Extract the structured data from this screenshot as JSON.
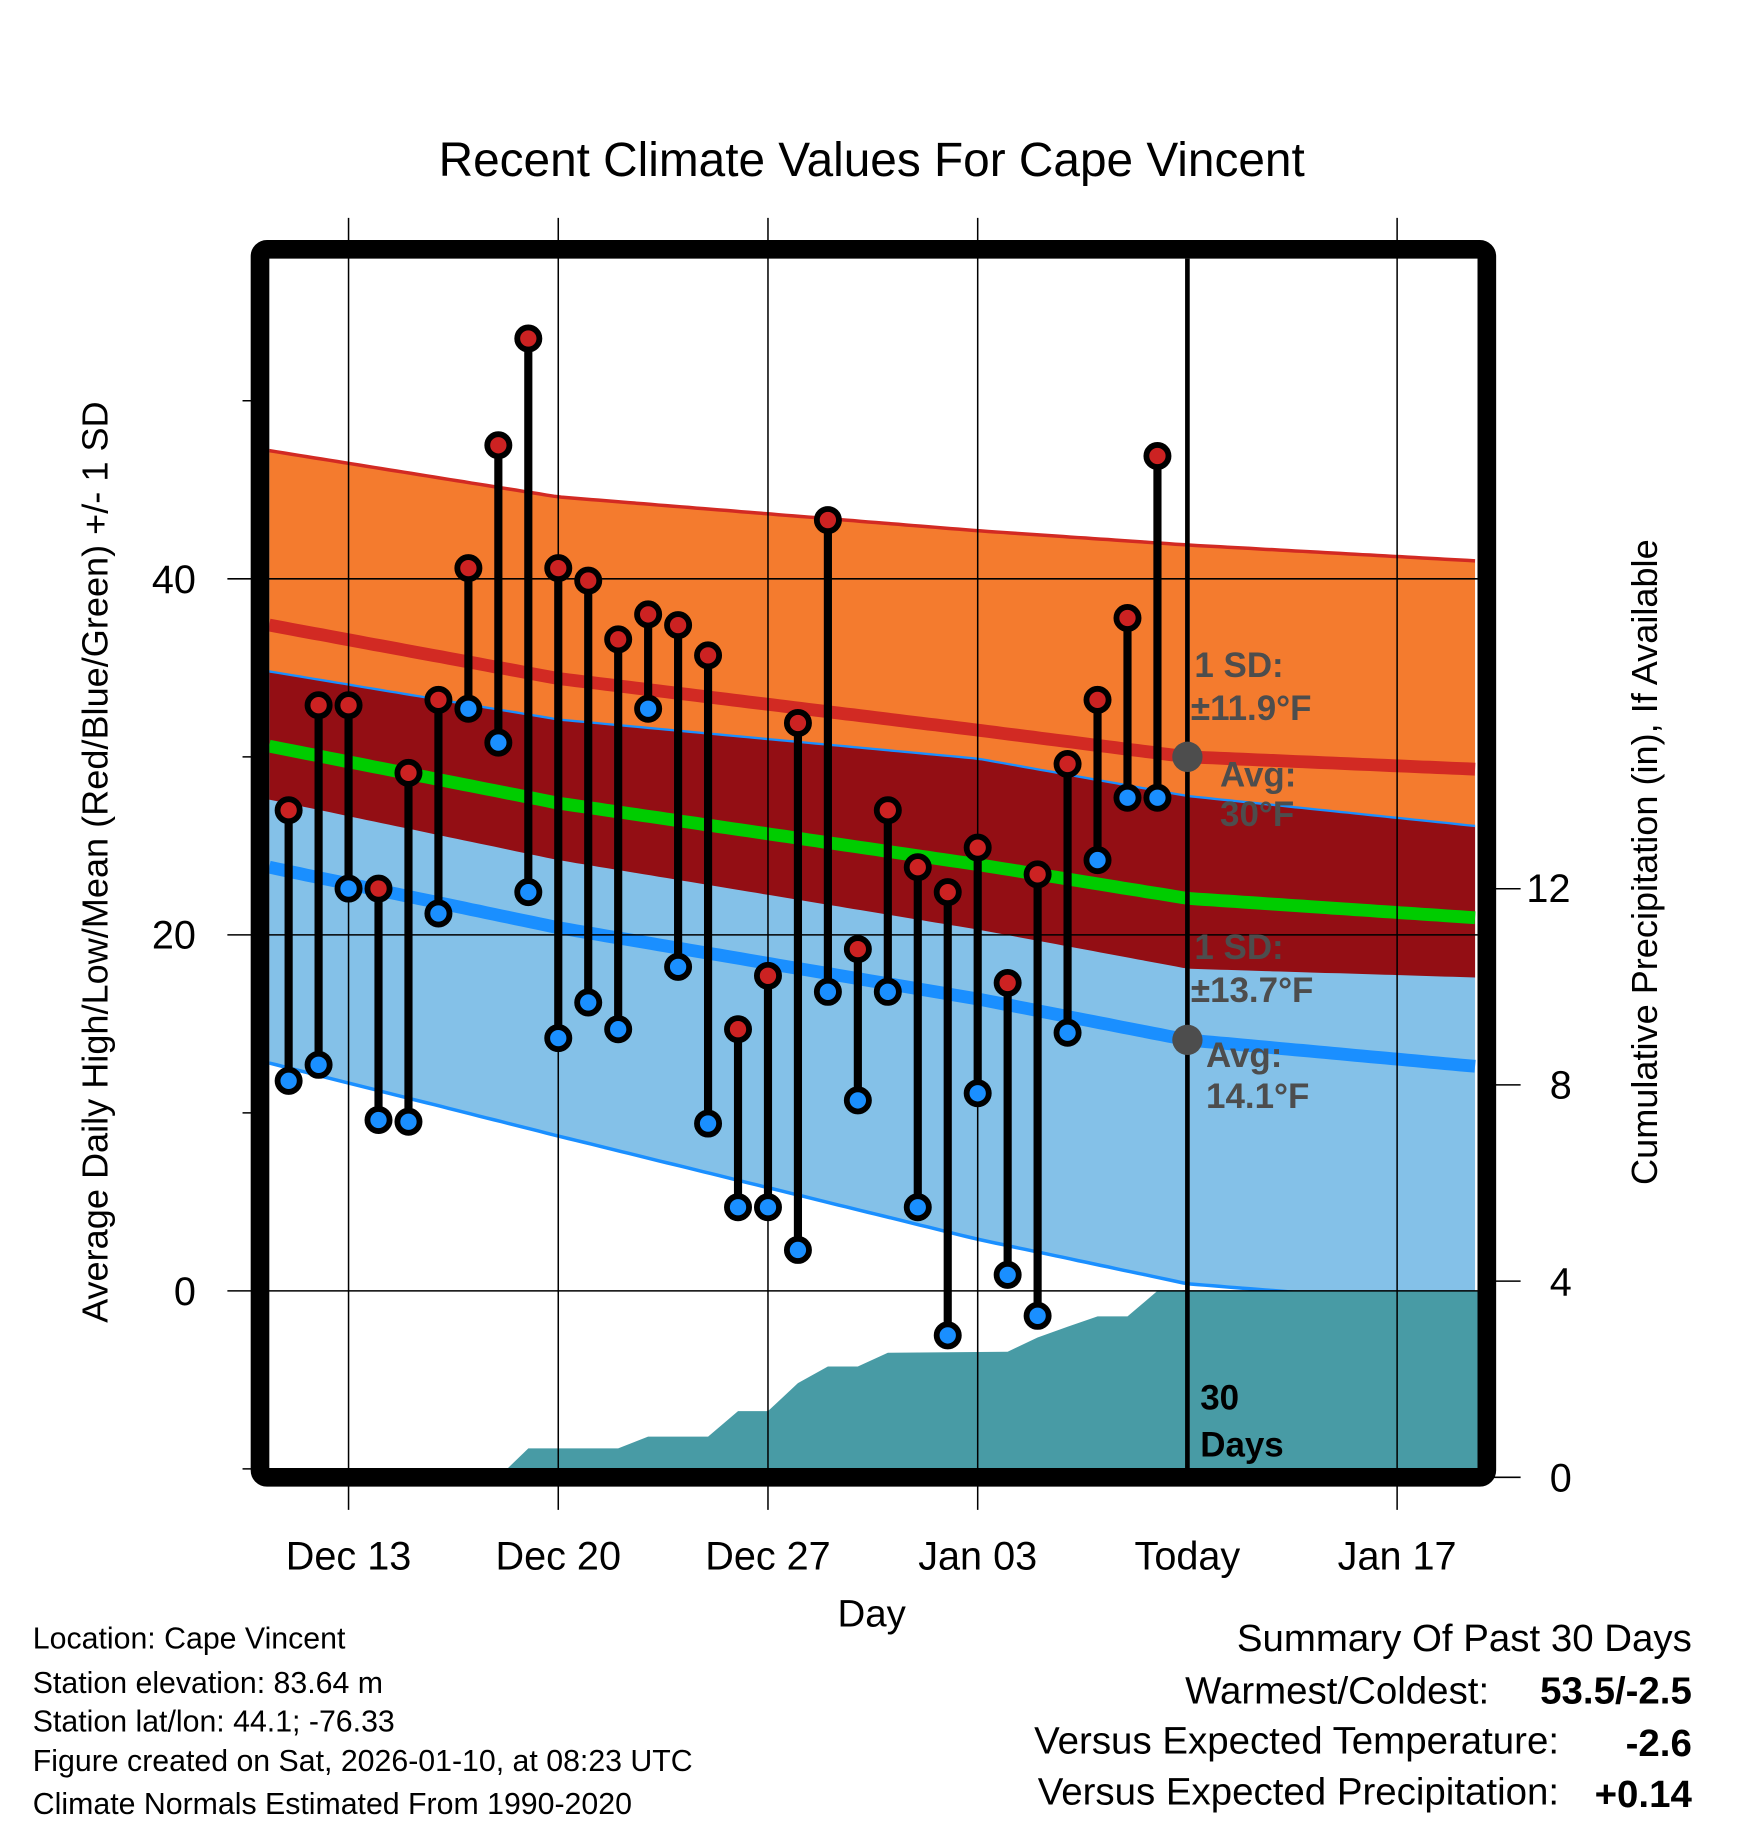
{
  "chart_data": {
    "type": "line",
    "title": "Recent Climate Values For Cape Vincent",
    "xlabel": "Day",
    "ylabel": "Average Daily High/Low/Mean (Red/Blue/Green) +/- 1 SD",
    "y2label": "Cumulative Precipitation (in), If Available",
    "x_unit": "days relative to Dec 13",
    "xlim": [
      -2.65,
      37.7
    ],
    "ylim": [
      -10,
      58
    ],
    "y2lim": [
      0,
      16.2
    ],
    "grid": true,
    "x_ticks": [
      {
        "day": 0,
        "label": "Dec 13"
      },
      {
        "day": 7,
        "label": "Dec 20"
      },
      {
        "day": 14,
        "label": "Dec 27"
      },
      {
        "day": 21,
        "label": "Jan 03"
      },
      {
        "day": 28,
        "label": "Today"
      },
      {
        "day": 35,
        "label": "Jan 17"
      }
    ],
    "y_ticks": [
      0,
      20,
      40
    ],
    "y_minor_ticks": [
      -10,
      10,
      30,
      50
    ],
    "y2_ticks": [
      0,
      4,
      8,
      12
    ],
    "today_day": 28,
    "dates": [
      "Dec 11",
      "Dec 12",
      "Dec 13",
      "Dec 14",
      "Dec 15",
      "Dec 16",
      "Dec 17",
      "Dec 18",
      "Dec 19",
      "Dec 20",
      "Dec 21",
      "Dec 22",
      "Dec 23",
      "Dec 24",
      "Dec 25",
      "Dec 26",
      "Dec 27",
      "Dec 28",
      "Dec 29",
      "Dec 30",
      "Dec 31",
      "Jan 01",
      "Jan 02",
      "Jan 03",
      "Jan 04",
      "Jan 05",
      "Jan 06",
      "Jan 07",
      "Jan 08",
      "Jan 09"
    ],
    "days": [
      -2,
      -1,
      0,
      1,
      2,
      3,
      4,
      5,
      6,
      7,
      8,
      9,
      10,
      11,
      12,
      13,
      14,
      15,
      16,
      17,
      18,
      19,
      20,
      21,
      22,
      23,
      24,
      25,
      26,
      27
    ],
    "series": [
      {
        "name": "Daily High",
        "color": "#cc2222",
        "values": [
          27.0,
          32.9,
          32.9,
          22.6,
          29.1,
          33.2,
          40.6,
          47.5,
          53.5,
          40.6,
          39.9,
          36.6,
          38.0,
          37.4,
          35.7,
          14.7,
          17.7,
          31.9,
          43.3,
          19.2,
          27.0,
          23.8,
          22.4,
          24.9,
          17.3,
          23.4,
          29.6,
          33.2,
          37.8,
          46.9
        ]
      },
      {
        "name": "Daily Low",
        "color": "#1a8fff",
        "values": [
          11.8,
          12.7,
          22.6,
          9.6,
          9.5,
          21.2,
          32.7,
          30.8,
          22.4,
          14.2,
          16.2,
          14.7,
          32.7,
          18.2,
          9.4,
          4.7,
          4.7,
          2.3,
          16.8,
          10.7,
          16.8,
          4.7,
          -2.5,
          11.1,
          0.9,
          -1.4,
          14.5,
          24.2,
          27.7,
          27.7
        ]
      }
    ],
    "normals": {
      "days": [
        -2.65,
        7,
        21,
        28,
        37.7
      ],
      "high_avg": [
        37.4,
        34.4,
        31.5,
        30.0,
        29.3
      ],
      "high_sd": [
        9.8,
        10.2,
        11.2,
        11.9,
        11.7
      ],
      "low_avg": [
        23.8,
        20.4,
        16.4,
        14.1,
        12.6
      ],
      "low_sd": [
        11.0,
        11.7,
        13.5,
        13.7,
        13.5
      ]
    },
    "precip_cumulative": {
      "days": [
        -2.65,
        5,
        6,
        9,
        10,
        12,
        13,
        14,
        15,
        16,
        17,
        18,
        22,
        23,
        24,
        25,
        26,
        27,
        37.7
      ],
      "values": [
        0,
        0,
        0.59,
        0.59,
        0.83,
        0.83,
        1.35,
        1.35,
        1.92,
        2.26,
        2.26,
        2.54,
        2.56,
        2.85,
        3.07,
        3.28,
        3.28,
        3.8,
        3.8
      ]
    },
    "annotations": {
      "high_sd_label": "1 SD:",
      "high_sd_value": "±11.9°F",
      "high_avg_label": "Avg:",
      "high_avg_value": "30°F",
      "low_sd_label": "1 SD:",
      "low_sd_value": "±13.7°F",
      "low_avg_label": "Avg:",
      "low_avg_value": "14.1°F",
      "days_count": "30",
      "days_word": "Days",
      "high_avg_marker": 30.0,
      "low_avg_marker": 14.1
    },
    "colors": {
      "high_band": "#f47b2e",
      "overlap_band": "#930e14",
      "low_band": "#84c1e8",
      "high_line": "#d22a23",
      "mean_line": "#00cc00",
      "low_line": "#1a8fff",
      "precip": "#489ba5",
      "annotation": "#4d4d4d"
    }
  },
  "tick_labels": {
    "y0": "0",
    "y20": "20",
    "y40": "40",
    "p0": "0",
    "p4": "4",
    "p8": "8",
    "p12": "12"
  },
  "footer": {
    "location": "Location: Cape Vincent",
    "elevation": "Station elevation: 83.64 m",
    "latlon": "Station lat/lon: 44.1; -76.33",
    "created": "Figure created on Sat, 2026-01-10, at 08:23 UTC",
    "normals": "Climate Normals Estimated From 1990-2020"
  },
  "summary": {
    "title": "Summary Of Past 30 Days",
    "warmest_label": "Warmest/Coldest:",
    "warmest_value": "53.5/-2.5",
    "temp_label": "Versus Expected Temperature:",
    "temp_value": "-2.6",
    "temp_color": "#1e90ff",
    "precip_label": "Versus Expected Precipitation:",
    "precip_value": "+0.14",
    "precip_color": "#00c000"
  }
}
